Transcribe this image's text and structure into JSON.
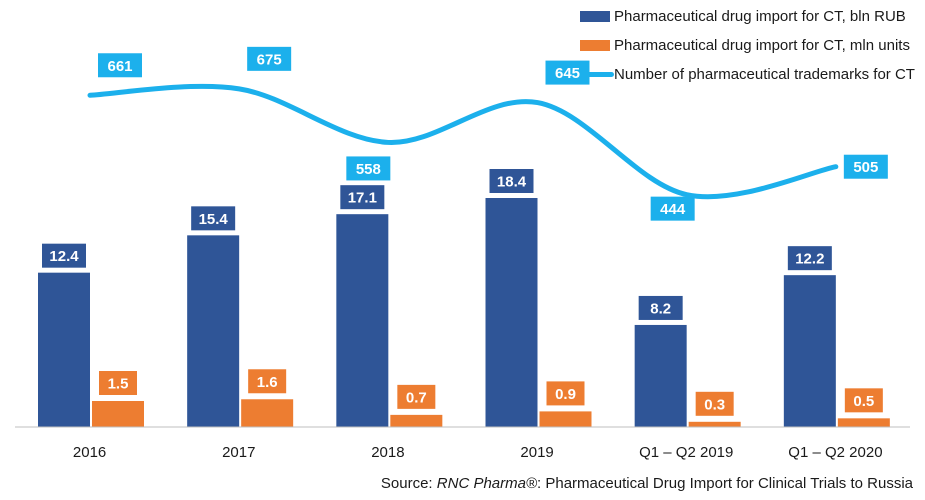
{
  "chart_data": {
    "type": "bar",
    "categories": [
      "2016",
      "2017",
      "2018",
      "2019",
      "Q1 – Q2 2019",
      "Q1 – Q2 2020"
    ],
    "series": [
      {
        "name": "Pharmaceutical drug import for CT, bln RUB",
        "kind": "bar",
        "color": "#2f5597",
        "values": [
          12.4,
          15.4,
          17.1,
          18.4,
          8.2,
          12.2
        ]
      },
      {
        "name": "Pharmaceutical drug import for CT, mln units",
        "kind": "bar",
        "color": "#ed7d31",
        "values": [
          1.5,
          1.6,
          0.7,
          0.9,
          0.3,
          0.5
        ]
      },
      {
        "name": "Number of pharmaceutical trademarks for CT",
        "kind": "line",
        "color": "#1cb0ec",
        "values": [
          661,
          675,
          558,
          645,
          444,
          505
        ]
      }
    ],
    "legend_position": "top-right",
    "grid": false
  },
  "source": {
    "prefix": "Source: ",
    "brand": "RNC Pharma®",
    "suffix": ": Pharmaceutical Drug Import for Clinical Trials to Russia"
  }
}
